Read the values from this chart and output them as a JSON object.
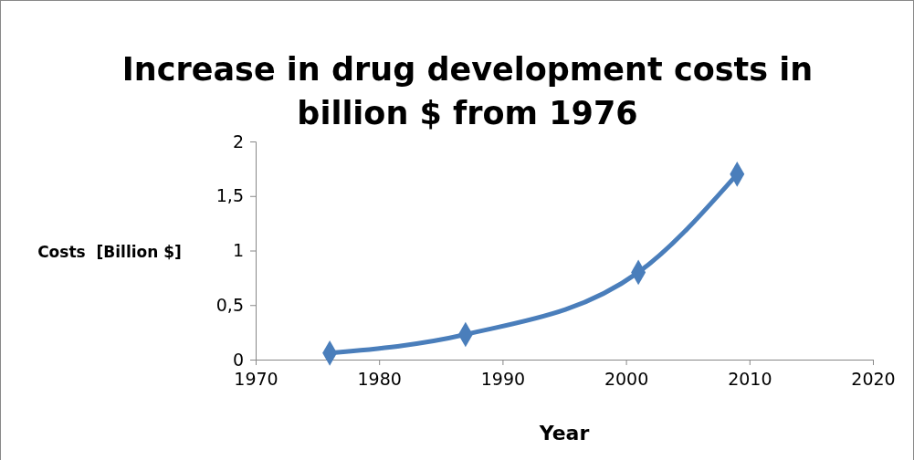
{
  "chart_data": {
    "type": "line",
    "title": "Increase in drug development costs in billion $ from 1976",
    "xlabel": "Year",
    "ylabel": "Costs  [Billion $]",
    "x": [
      1976,
      1987,
      2001,
      2009
    ],
    "series": [
      {
        "color": "#4a7ebb",
        "values": [
          0.06,
          0.23,
          0.8,
          1.7
        ]
      }
    ],
    "xlim": [
      1970,
      2020
    ],
    "xticks": [
      1970,
      1980,
      1990,
      2000,
      2010,
      2020
    ],
    "ylim": [
      0,
      2
    ],
    "yticks": [
      0,
      {
        "value": 0.5,
        "label": "0,5"
      },
      1,
      {
        "value": 1.5,
        "label": "1,5"
      },
      2
    ],
    "marker": "diamond",
    "line_style": "solid",
    "grid": false
  }
}
